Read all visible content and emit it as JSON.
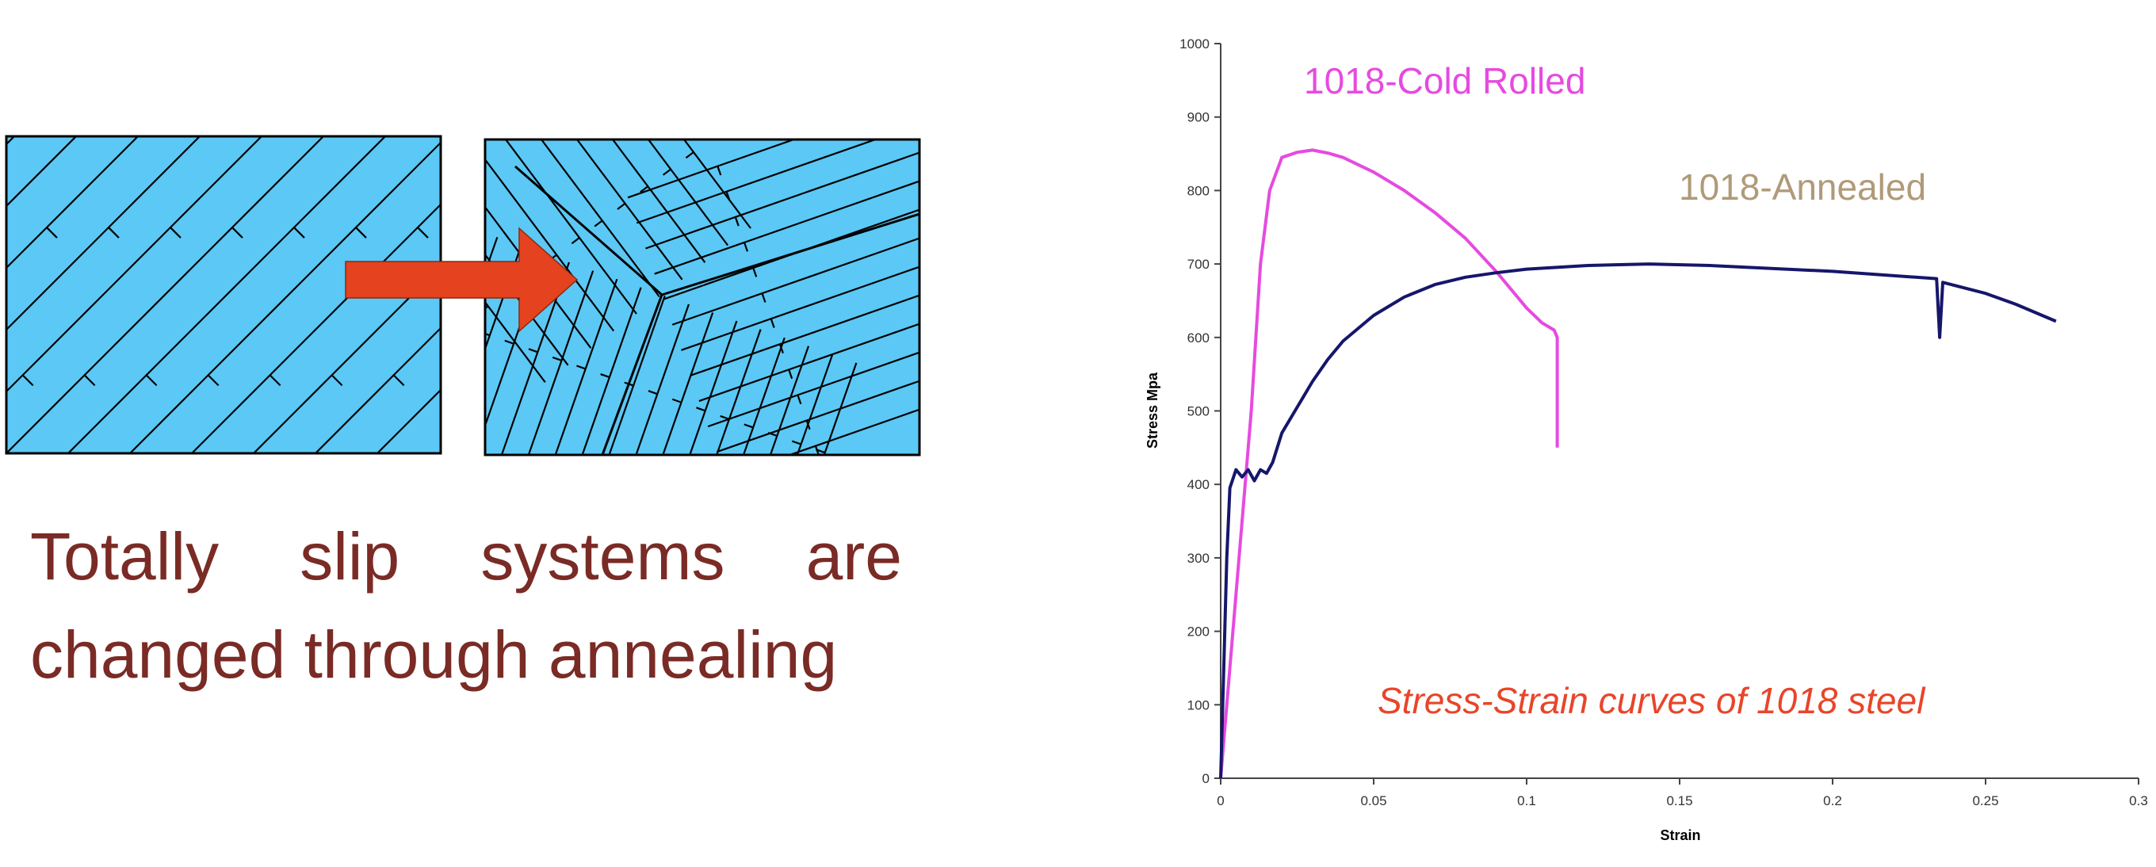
{
  "caption": "Totally slip systems are changed through annealing",
  "colors": {
    "grain_fill": "#5bc8f5",
    "arrow": "#e5421f",
    "caption": "#7a2b25",
    "cold_rolled": "#e64ae0",
    "annealed": "#16166b",
    "cold_rolled_label": "#e64ae0",
    "annealed_label": "#b09a78",
    "chart_title": "#e8452a"
  },
  "chart_data": {
    "type": "line",
    "title": "Stress-Strain curves of 1018 steel",
    "xlabel": "Strain",
    "ylabel": "Stress Mpa",
    "xlim": [
      0,
      0.3
    ],
    "ylim": [
      0,
      1000
    ],
    "xticks": [
      "0",
      "0.05",
      "0.1",
      "0.15",
      "0.2",
      "0.25",
      "0.3"
    ],
    "yticks": [
      "0",
      "100",
      "200",
      "300",
      "400",
      "500",
      "600",
      "700",
      "800",
      "900",
      "1000"
    ],
    "grid": false,
    "series": [
      {
        "name": "1018-Cold Rolled",
        "x": [
          0,
          0.005,
          0.01,
          0.013,
          0.016,
          0.02,
          0.025,
          0.03,
          0.035,
          0.04,
          0.05,
          0.06,
          0.07,
          0.08,
          0.09,
          0.1,
          0.105,
          0.109,
          0.11,
          0.11
        ],
        "y": [
          0,
          250,
          500,
          700,
          800,
          845,
          852,
          855,
          851,
          845,
          825,
          800,
          770,
          735,
          690,
          640,
          620,
          610,
          600,
          450
        ]
      },
      {
        "name": "1018-Annealed",
        "x": [
          0,
          0.001,
          0.002,
          0.003,
          0.005,
          0.007,
          0.009,
          0.011,
          0.013,
          0.015,
          0.017,
          0.02,
          0.025,
          0.03,
          0.035,
          0.04,
          0.05,
          0.06,
          0.07,
          0.08,
          0.09,
          0.1,
          0.12,
          0.14,
          0.16,
          0.18,
          0.2,
          0.22,
          0.234,
          0.235,
          0.236,
          0.25,
          0.26,
          0.273
        ],
        "y": [
          0,
          150,
          300,
          395,
          420,
          410,
          420,
          405,
          420,
          415,
          430,
          470,
          505,
          540,
          570,
          595,
          630,
          655,
          672,
          682,
          688,
          693,
          698,
          700,
          698,
          694,
          690,
          684,
          680,
          600,
          675,
          660,
          645,
          622
        ]
      }
    ]
  }
}
